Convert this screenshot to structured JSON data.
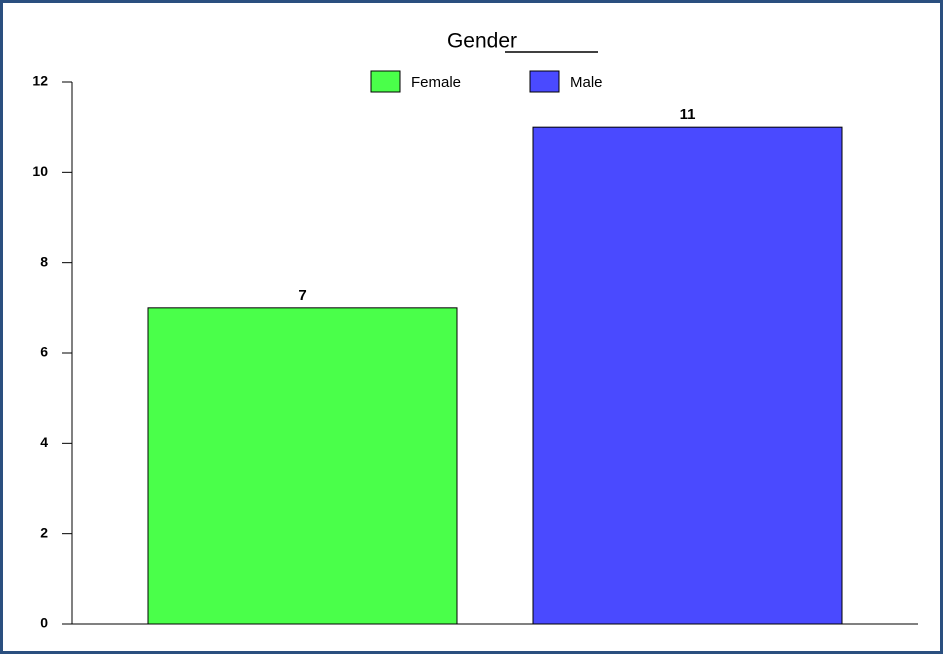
{
  "chart_data": {
    "type": "bar",
    "title": "Gender",
    "categories": [
      null
    ],
    "series": [
      {
        "name": "Female",
        "color": "#4aff4a",
        "values": [
          7
        ]
      },
      {
        "name": "Male",
        "color": "#4a4aff",
        "values": [
          11
        ]
      }
    ],
    "ylim": [
      0,
      12
    ],
    "yticks": [
      0,
      2,
      4,
      6,
      8,
      10,
      12
    ],
    "grid": false,
    "legend": "top"
  }
}
